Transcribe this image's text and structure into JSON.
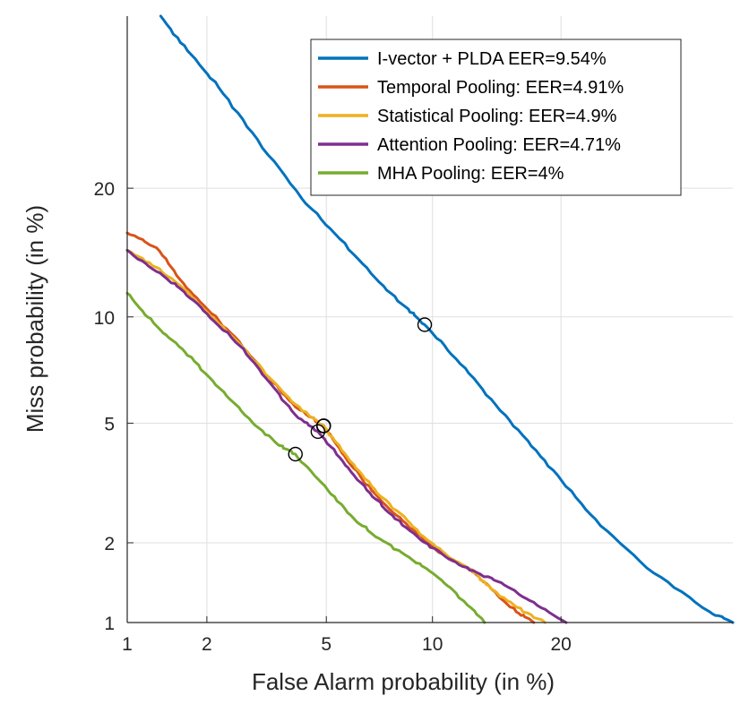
{
  "chart_data": {
    "type": "line",
    "title": "",
    "xlabel": "False Alarm probability (in %)",
    "ylabel": "Miss probability (in %)",
    "x_scale": "probit",
    "y_scale": "probit",
    "xlim": [
      1,
      40
    ],
    "ylim": [
      1,
      40
    ],
    "x_ticks": [
      1,
      2,
      5,
      10,
      20
    ],
    "y_ticks": [
      1,
      2,
      5,
      10,
      20
    ],
    "x_tick_labels": [
      "1",
      "2",
      "5",
      "10",
      "20"
    ],
    "y_tick_labels": [
      "1",
      "2",
      "5",
      "10",
      "20"
    ],
    "grid": true,
    "legend_position": "top-right",
    "series": [
      {
        "name": "I-vector + PLDA EER=9.54%",
        "color": "#0072BD",
        "eer": 9.54,
        "x": [
          1.35,
          1.7,
          2.2,
          3.0,
          4.2,
          5.5,
          7.0,
          8.5,
          9.54,
          11.5,
          14.0,
          17.0,
          20.0,
          24.0,
          30.0,
          37.0,
          40.0
        ],
        "y": [
          40.0,
          35.5,
          31.0,
          25.0,
          19.0,
          15.5,
          12.5,
          10.6,
          9.54,
          7.7,
          5.9,
          4.4,
          3.3,
          2.3,
          1.55,
          1.1,
          1.0
        ]
      },
      {
        "name": "Temporal Pooling: EER=4.91%",
        "color": "#D95319",
        "eer": 4.91,
        "x": [
          1.0,
          1.3,
          1.6,
          2.0,
          2.6,
          3.3,
          4.0,
          4.91,
          5.8,
          6.8,
          8.0,
          9.5,
          11.0,
          12.5,
          14.0,
          16.0,
          17.5
        ],
        "y": [
          16.0,
          14.8,
          12.4,
          10.5,
          8.6,
          6.8,
          5.6,
          4.91,
          3.8,
          3.05,
          2.5,
          2.05,
          1.75,
          1.6,
          1.35,
          1.1,
          1.0
        ]
      },
      {
        "name": "Statistical Pooling: EER=4.9%",
        "color": "#EDB120",
        "eer": 4.9,
        "x": [
          1.0,
          1.3,
          1.6,
          2.0,
          2.6,
          3.3,
          4.0,
          4.9,
          5.8,
          6.8,
          8.0,
          9.5,
          11.0,
          12.5,
          14.0,
          16.0,
          18.5
        ],
        "y": [
          14.6,
          13.3,
          12.0,
          10.3,
          8.5,
          6.8,
          5.7,
          4.9,
          3.9,
          3.15,
          2.6,
          2.1,
          1.78,
          1.6,
          1.35,
          1.15,
          1.0
        ]
      },
      {
        "name": "Attention Pooling: EER=4.71%",
        "color": "#7E2F8E",
        "eer": 4.71,
        "x": [
          1.0,
          1.3,
          1.6,
          2.0,
          2.6,
          3.3,
          4.0,
          4.71,
          5.6,
          6.6,
          7.8,
          9.3,
          11.0,
          13.0,
          15.0,
          17.5,
          20.5
        ],
        "y": [
          14.6,
          13.0,
          11.8,
          10.2,
          8.4,
          6.6,
          5.3,
          4.71,
          3.8,
          3.05,
          2.5,
          2.05,
          1.75,
          1.55,
          1.4,
          1.2,
          1.0
        ]
      },
      {
        "name": "MHA Pooling: EER=4%",
        "color": "#77AC30",
        "eer": 4.0,
        "x": [
          1.0,
          1.2,
          1.45,
          1.8,
          2.3,
          2.9,
          3.5,
          4.0,
          4.8,
          5.8,
          7.0,
          8.5,
          10.0,
          11.5,
          13.5
        ],
        "y": [
          11.5,
          10.0,
          8.8,
          7.6,
          6.2,
          5.0,
          4.3,
          4.0,
          3.25,
          2.55,
          2.1,
          1.8,
          1.55,
          1.3,
          1.0
        ]
      }
    ]
  }
}
